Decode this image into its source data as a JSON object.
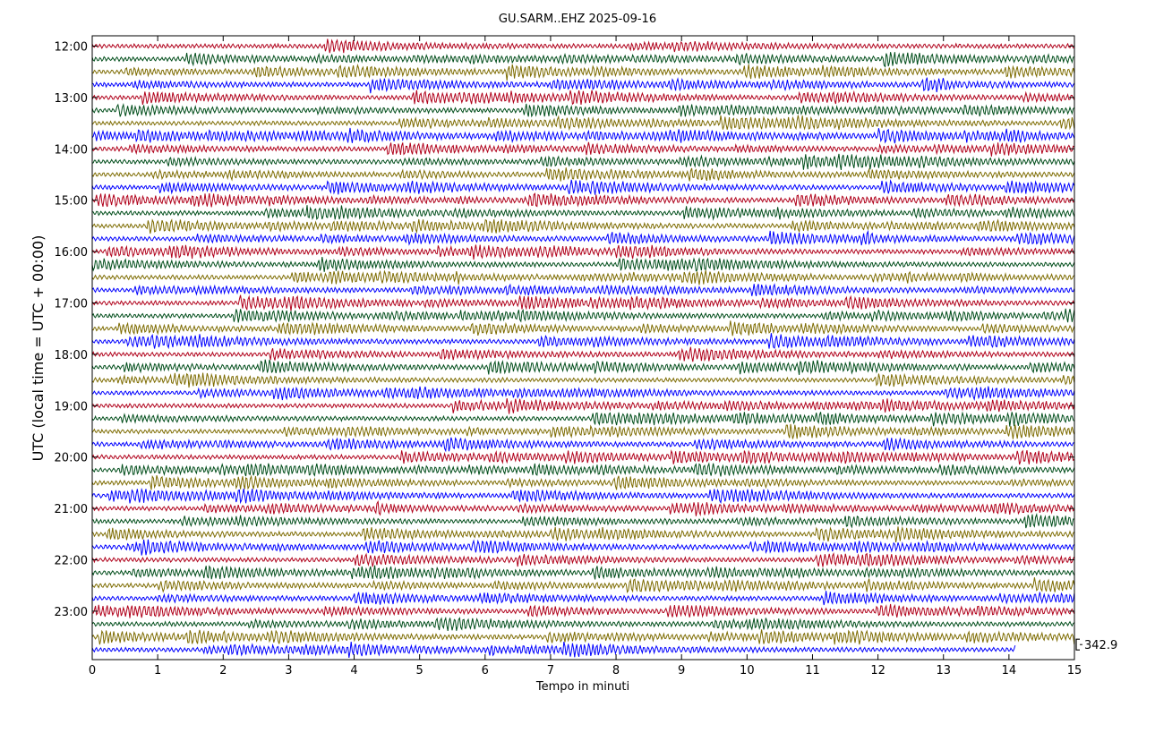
{
  "chart_data": {
    "type": "line",
    "title": "GU.SARM..EHZ 2025-09-16",
    "xlabel": "Tempo in minuti",
    "ylabel": "UTC (local time = UTC + 00:00)",
    "xlim": [
      0,
      15
    ],
    "x_ticks": [
      "0",
      "1",
      "2",
      "3",
      "4",
      "5",
      "6",
      "7",
      "8",
      "9",
      "10",
      "11",
      "12",
      "13",
      "14",
      "15"
    ],
    "y_ticks": [
      "12:00",
      "13:00",
      "14:00",
      "15:00",
      "16:00",
      "17:00",
      "18:00",
      "19:00",
      "20:00",
      "21:00",
      "22:00",
      "23:00"
    ],
    "rows_per_hour": 4,
    "row_minutes": 15,
    "row_count": 48,
    "last_row_end_minute": 14.1,
    "trace_colors": [
      "#b0001a",
      "#004d1a",
      "#7d6b00",
      "#0000ff"
    ],
    "scale_label": "342.9",
    "grid": false,
    "legend": "none"
  }
}
